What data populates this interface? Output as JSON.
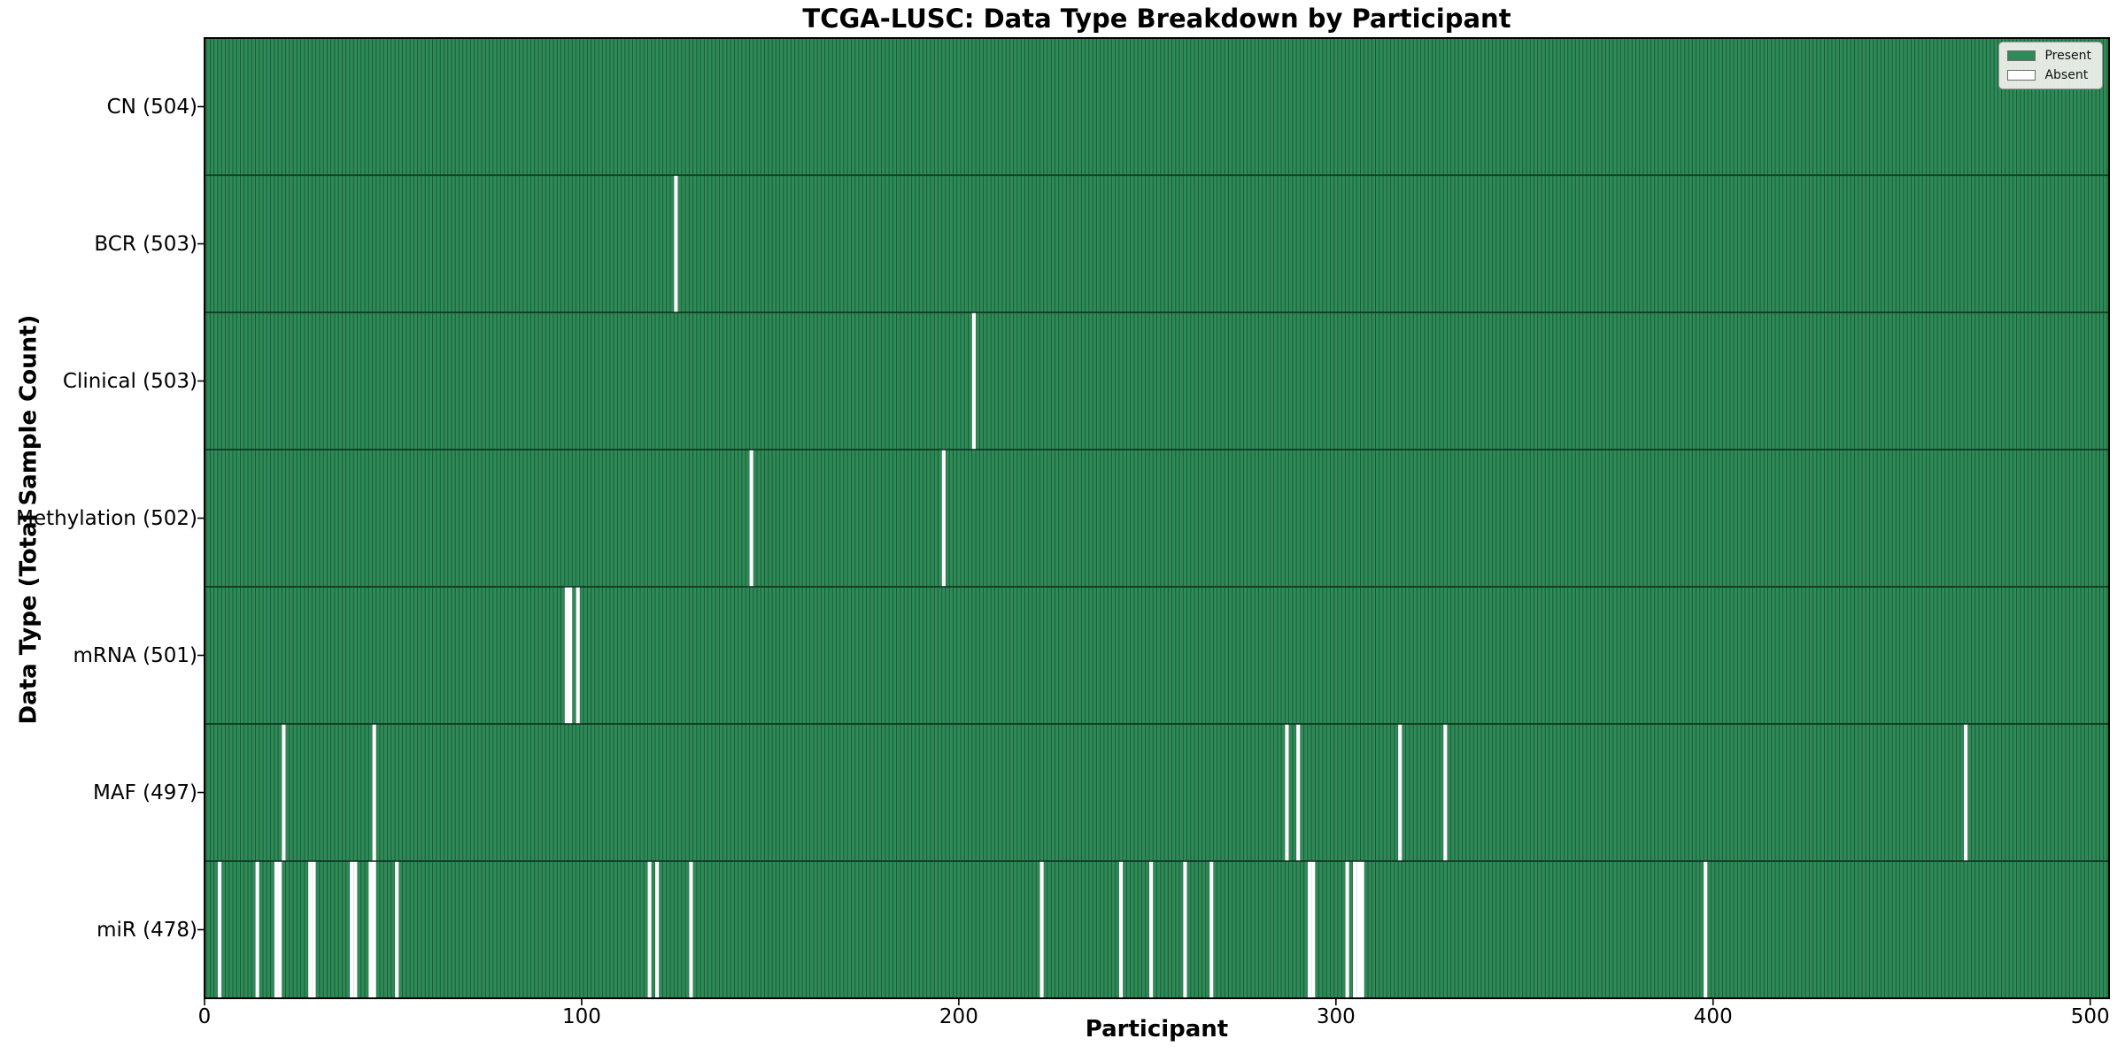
{
  "chart_data": {
    "type": "heatmap",
    "title": "TCGA-LUSC: Data Type Breakdown by Participant",
    "xlabel": "Participant",
    "ylabel": "Data Type (Total Sample Count)",
    "x_ticks": [
      0,
      100,
      200,
      300,
      400,
      500
    ],
    "x_tick_labels": [
      "0",
      "100",
      "200",
      "300",
      "400",
      "500"
    ],
    "x_range": [
      0,
      505
    ],
    "n_participants": 504,
    "grid": false,
    "legend_position": "upper right",
    "legend": [
      {
        "label": "Present",
        "color": "#2e8b57"
      },
      {
        "label": "Absent",
        "color": "#ffffff"
      }
    ],
    "rows": [
      {
        "label": "CN (504)",
        "data_type": "CN",
        "total": 504,
        "absent_participants": []
      },
      {
        "label": "BCR (503)",
        "data_type": "BCR",
        "total": 503,
        "absent_participants": [
          125
        ]
      },
      {
        "label": "Clinical (503)",
        "data_type": "Clinical",
        "total": 503,
        "absent_participants": [
          204
        ]
      },
      {
        "label": "Methylation (502)",
        "data_type": "Methylation",
        "total": 502,
        "absent_participants": [
          145,
          196
        ]
      },
      {
        "label": "mRNA (501)",
        "data_type": "mRNA",
        "total": 501,
        "absent_participants": [
          96,
          97,
          99
        ]
      },
      {
        "label": "MAF (497)",
        "data_type": "MAF",
        "total": 497,
        "absent_participants": [
          21,
          45,
          287,
          290,
          317,
          329,
          467
        ]
      },
      {
        "label": "miR (478)",
        "data_type": "miR",
        "total": 478,
        "absent_participants": [
          4,
          14,
          19,
          20,
          28,
          29,
          39,
          40,
          44,
          45,
          51,
          118,
          120,
          129,
          222,
          243,
          251,
          260,
          267,
          293,
          294,
          303,
          305,
          306,
          307,
          398
        ]
      }
    ],
    "colors": {
      "present": "#2e8b57",
      "absent": "#ffffff",
      "bar_edge": "#174d30",
      "row_divider": "#0e2a1b",
      "plot_border": "#000000",
      "tick": "#000000",
      "legend_bg": "#f2f2ee",
      "legend_border": "#9a9a9a",
      "background": "#ffffff"
    }
  }
}
